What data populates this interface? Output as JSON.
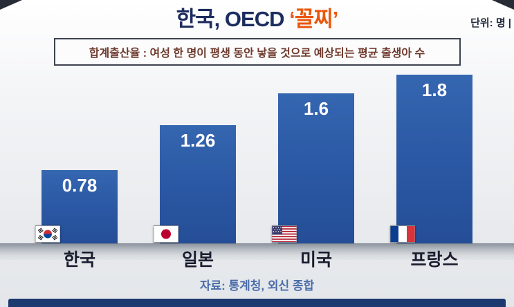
{
  "header": {
    "title_main": "한국, OECD ",
    "title_accent": "‘꼴찌’",
    "unit": "단위: 명 |"
  },
  "definition": "합계출산율 : 여성 한 명이 평생 동안 낳을 것으로 예상되는 평균 출생아 수",
  "source": "자료: 통계청, 외신 종합",
  "chart_data": {
    "type": "bar",
    "title": "한국, OECD ‘꼴찌’",
    "subtitle": "합계출산율 : 여성 한 명이 평생 동안 낳을 것으로 예상되는 평균 출생아 수",
    "categories": [
      "한국",
      "일본",
      "미국",
      "프랑스"
    ],
    "values": [
      0.78,
      1.26,
      1.6,
      1.8
    ],
    "value_labels": [
      "0.78",
      "1.26",
      "1.6",
      "1.8"
    ],
    "flags": [
      "south-korea",
      "japan",
      "united-states",
      "france"
    ],
    "unit": "명",
    "ylim": [
      0,
      1.9
    ],
    "grid": false,
    "legend": "none",
    "bar_color": "#2a57a3",
    "accent_color": "#ea570d",
    "title_color": "#1c2c5e"
  }
}
